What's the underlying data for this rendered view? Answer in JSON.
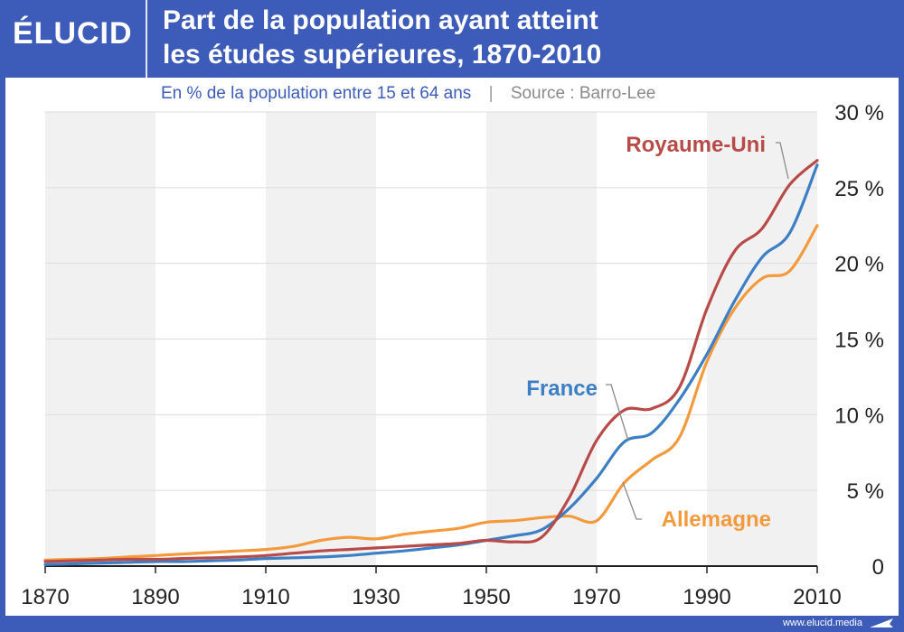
{
  "brand": {
    "logo": "ÉLUCID",
    "url": "www.elucid.media"
  },
  "header": {
    "title_line1": "Part de la population ayant atteint",
    "title_line2": "les études supérieures, 1870-2010"
  },
  "subtitle": {
    "text": "En % de la population entre 15 et 64 ans",
    "separator": "|",
    "source": "Source : Barro-Lee"
  },
  "colors": {
    "frame": "#3d5bb8",
    "uk": "#b84a48",
    "france": "#3c7fc4",
    "germany": "#f39a3d",
    "band": "#f1f1f1",
    "grid": "#dcdcdc"
  },
  "chart_data": {
    "type": "line",
    "title": "Part de la population ayant atteint les études supérieures, 1870-2010",
    "subtitle": "En % de la population entre 15 et 64 ans",
    "xlabel": "",
    "ylabel": "",
    "xlim": [
      1870,
      2010
    ],
    "ylim": [
      0,
      30
    ],
    "x_ticks": [
      "1870",
      "1890",
      "1910",
      "1930",
      "1950",
      "1970",
      "1990",
      "2010"
    ],
    "y_ticks": [
      "0",
      "5 %",
      "10 %",
      "15 %",
      "20 %",
      "25 %",
      "30 %"
    ],
    "x": [
      1870,
      1875,
      1880,
      1885,
      1890,
      1895,
      1900,
      1905,
      1910,
      1915,
      1920,
      1925,
      1930,
      1935,
      1940,
      1945,
      1950,
      1955,
      1960,
      1965,
      1970,
      1975,
      1980,
      1985,
      1990,
      1995,
      2000,
      2005,
      2010
    ],
    "series": [
      {
        "name": "Royaume-Uni",
        "key": "uk",
        "values": [
          0.3,
          0.35,
          0.4,
          0.45,
          0.45,
          0.5,
          0.55,
          0.6,
          0.7,
          0.85,
          1.0,
          1.1,
          1.2,
          1.3,
          1.4,
          1.5,
          1.7,
          1.6,
          1.9,
          4.5,
          8.3,
          10.3,
          10.4,
          11.8,
          17.0,
          20.8,
          22.3,
          25.2,
          26.8
        ]
      },
      {
        "name": "France",
        "key": "france",
        "values": [
          0.1,
          0.15,
          0.2,
          0.25,
          0.3,
          0.3,
          0.35,
          0.4,
          0.5,
          0.55,
          0.6,
          0.7,
          0.85,
          1.0,
          1.2,
          1.4,
          1.7,
          2.0,
          2.4,
          3.8,
          5.8,
          8.2,
          8.8,
          11.0,
          14.0,
          17.5,
          20.4,
          22.0,
          26.5
        ]
      },
      {
        "name": "Allemagne",
        "key": "germany",
        "values": [
          0.4,
          0.45,
          0.5,
          0.6,
          0.7,
          0.8,
          0.9,
          1.0,
          1.1,
          1.3,
          1.7,
          1.9,
          1.8,
          2.1,
          2.3,
          2.5,
          2.9,
          3.0,
          3.2,
          3.3,
          3.0,
          5.5,
          7.0,
          8.5,
          13.5,
          17.0,
          19.0,
          19.5,
          22.5
        ]
      }
    ],
    "annotations": [
      {
        "text": "Royaume-Uni",
        "series": "uk"
      },
      {
        "text": "France",
        "series": "france"
      },
      {
        "text": "Allemagne",
        "series": "germany"
      }
    ]
  }
}
